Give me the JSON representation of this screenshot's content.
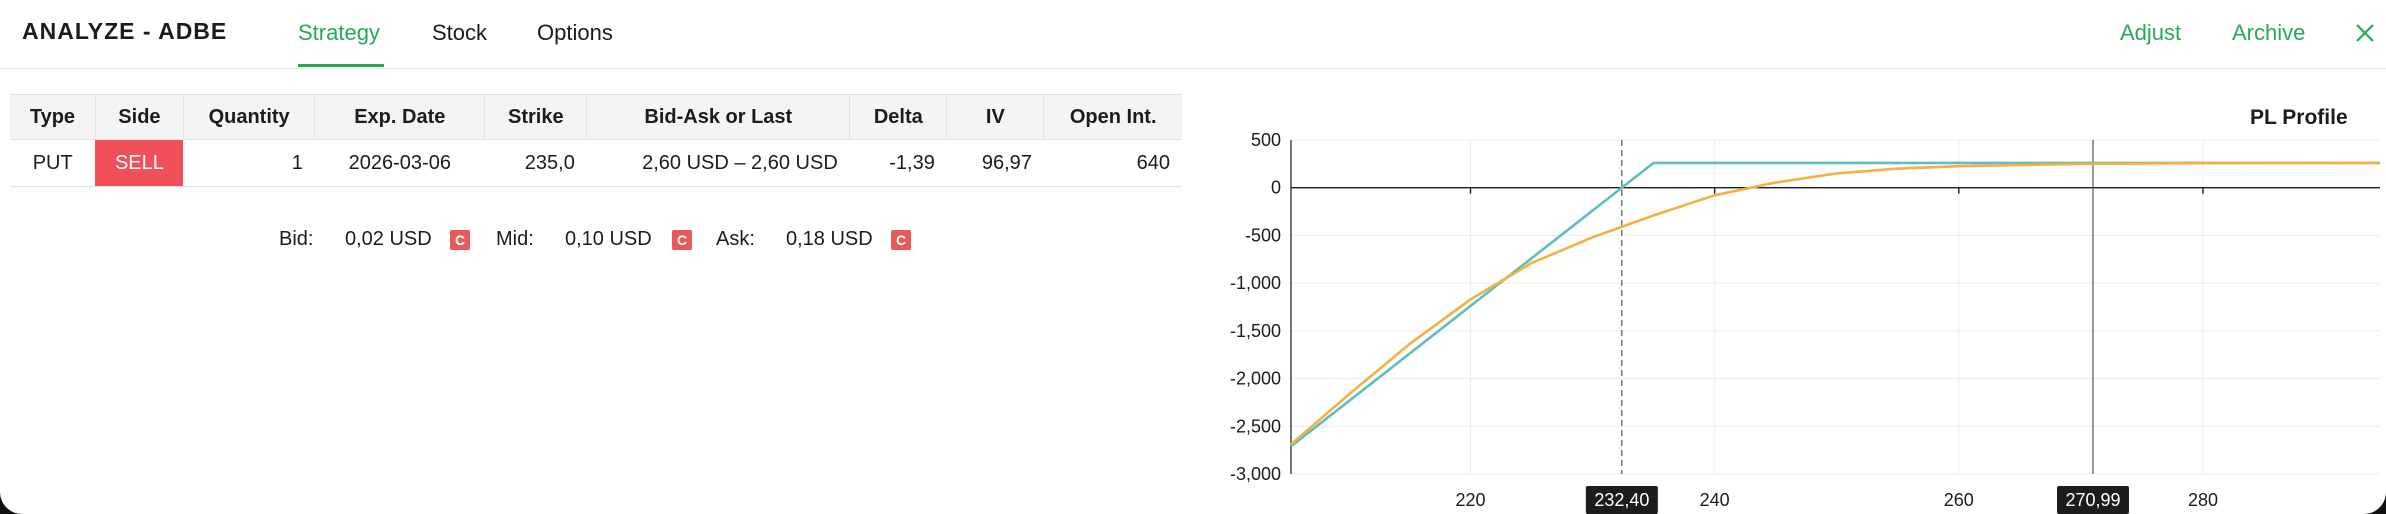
{
  "header": {
    "title": "ANALYZE - ADBE",
    "tabs": [
      {
        "label": "Strategy",
        "active": true
      },
      {
        "label": "Stock",
        "active": false
      },
      {
        "label": "Options",
        "active": false
      }
    ],
    "actions": {
      "adjust": "Adjust",
      "archive": "Archive"
    }
  },
  "table": {
    "columns": [
      "Type",
      "Side",
      "Quantity",
      "Exp. Date",
      "Strike",
      "Bid-Ask or Last",
      "Delta",
      "IV",
      "Open Int."
    ],
    "rows": [
      {
        "type": "PUT",
        "side": "SELL",
        "quantity": "1",
        "exp_date": "2026-03-06",
        "strike": "235,0",
        "bid_ask": "2,60 USD – 2,60 USD",
        "delta": "-1,39",
        "iv": "96,97",
        "open_int": "640"
      }
    ]
  },
  "quotes": {
    "bid_label": "Bid:",
    "bid_value": "0,02 USD",
    "mid_label": "Mid:",
    "mid_value": "0,10 USD",
    "ask_label": "Ask:",
    "ask_value": "0,18 USD",
    "badge": "C"
  },
  "colors": {
    "accent": "#2aa85a",
    "sell": "#f0505a",
    "expiry_line": "#5bc0be",
    "today_line": "#f5b041"
  },
  "chart_data": {
    "type": "line",
    "title": "PL Profile",
    "xlim": [
      205.3,
      294.5
    ],
    "ylim": [
      -3000,
      500
    ],
    "x_ticks": [
      220,
      240,
      260,
      280
    ],
    "y_ticks": [
      500,
      0,
      -500,
      -1000,
      -1500,
      -2000,
      -2500,
      -3000
    ],
    "y_tick_labels": [
      "500",
      "0",
      "-500",
      "-1,000",
      "-1,500",
      "-2,000",
      "-2,500",
      "-3,000"
    ],
    "markers": [
      {
        "x": 232.4,
        "label": "232,40",
        "style": "dashed"
      },
      {
        "x": 270.99,
        "label": "270,99",
        "style": "solid"
      }
    ],
    "series": [
      {
        "color": "#5bc0be",
        "x": [
          205.3,
          235.0,
          294.5
        ],
        "y": [
          -2710,
          260,
          260
        ]
      },
      {
        "color": "#f5b041",
        "x": [
          205.3,
          210,
          215,
          220,
          225,
          230,
          235,
          240,
          245,
          250,
          255,
          260,
          270,
          280,
          294.5
        ],
        "y": [
          -2690,
          -2170,
          -1640,
          -1170,
          -790,
          -520,
          -290,
          -80,
          55,
          150,
          200,
          225,
          250,
          258,
          260
        ]
      }
    ],
    "grid": true
  }
}
